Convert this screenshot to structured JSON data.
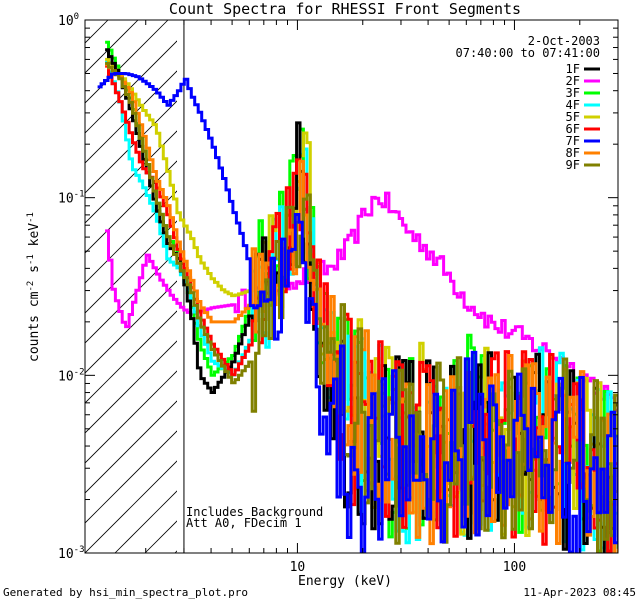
{
  "chart_data": {
    "type": "line",
    "title": "Count Spectra for RHESSI Front Segments",
    "xlabel": "Energy (keV)",
    "ylabel": {
      "main": "counts cm",
      "e1": "-2",
      "mid": " s",
      "e2": "-1",
      "end": " keV",
      "e3": "-1"
    },
    "x_scale": "log",
    "y_scale": "log",
    "xlim": [
      1.05,
      300
    ],
    "ylim": [
      0.001,
      1.0
    ],
    "x_ticks": [
      {
        "value": 10,
        "label": "10"
      },
      {
        "value": 100,
        "label": "100"
      }
    ],
    "y_ticks": [
      {
        "value": 0.001,
        "label": "10",
        "exp": "-3"
      },
      {
        "value": 0.01,
        "label": "10",
        "exp": "-2"
      },
      {
        "value": 0.1,
        "label": "10",
        "exp": "-1"
      },
      {
        "value": 1,
        "label": "10",
        "exp": "0"
      }
    ],
    "legend_placement": "top-right",
    "legend_header": [
      "2-Oct-2003",
      "07:40:00 to 07:41:00"
    ],
    "hatched_region": [
      1.05,
      3.0
    ],
    "annotation": [
      "Includes Background",
      "Att A0, FDecim 1"
    ],
    "footer_left": "Generated by hsi_min_spectra_plot.pro",
    "footer_right": "11-Apr-2023 08:45",
    "series": [
      {
        "name": "1F",
        "color": "#000000",
        "x": [
          1.3,
          1.5,
          1.7,
          1.9,
          2.2,
          2.5,
          2.8,
          3.0,
          3.2,
          3.5,
          4,
          5,
          6,
          7,
          8,
          9,
          10,
          10.5,
          11,
          12,
          14,
          17,
          20,
          25,
          30,
          35,
          40,
          50,
          60,
          70,
          80,
          100,
          120,
          150,
          180,
          200,
          230,
          260,
          300
        ],
        "y": [
          0.68,
          0.48,
          0.3,
          0.18,
          0.09,
          0.055,
          0.045,
          0.032,
          0.022,
          0.01,
          0.008,
          0.012,
          0.022,
          0.035,
          0.05,
          0.08,
          0.13,
          0.1,
          0.06,
          0.02,
          0.009,
          0.006,
          0.0045,
          0.004,
          0.0038,
          0.0037,
          0.0036,
          0.0035,
          0.0037,
          0.004,
          0.0042,
          0.0045,
          0.0042,
          0.004,
          0.0035,
          0.0033,
          0.003,
          0.0027,
          0.0024
        ]
      },
      {
        "name": "2F",
        "color": "#ff00ff",
        "x": [
          1.3,
          1.4,
          1.6,
          1.8,
          2.0,
          2.3,
          2.6,
          2.9,
          3.2,
          4,
          5,
          6,
          7,
          8,
          9,
          10,
          11,
          12,
          14,
          16,
          18,
          20,
          22,
          24,
          26,
          28,
          30,
          33,
          36,
          40,
          45,
          50,
          55,
          60,
          70,
          80,
          90,
          100,
          120,
          150,
          180,
          200,
          230,
          260,
          300
        ],
        "y": [
          0.065,
          0.03,
          0.018,
          0.03,
          0.048,
          0.035,
          0.028,
          0.024,
          0.022,
          0.024,
          0.025,
          0.028,
          0.03,
          0.032,
          0.034,
          0.036,
          0.036,
          0.038,
          0.04,
          0.048,
          0.06,
          0.08,
          0.095,
          0.1,
          0.09,
          0.08,
          0.072,
          0.062,
          0.057,
          0.05,
          0.042,
          0.035,
          0.03,
          0.026,
          0.022,
          0.019,
          0.018,
          0.017,
          0.015,
          0.013,
          0.011,
          0.01,
          0.009,
          0.008,
          0.0055
        ]
      },
      {
        "name": "3F",
        "color": "#00ff00",
        "x": [
          1.3,
          1.5,
          1.7,
          1.9,
          2.2,
          2.5,
          2.8,
          3.2,
          3.5,
          4,
          5,
          6,
          7,
          8,
          9,
          10,
          10.5,
          11,
          12,
          14,
          17,
          20,
          25,
          30,
          35,
          40,
          50,
          60,
          70,
          80,
          100,
          120,
          150,
          180,
          200,
          230,
          260,
          300
        ],
        "y": [
          0.75,
          0.5,
          0.35,
          0.2,
          0.1,
          0.06,
          0.05,
          0.025,
          0.015,
          0.01,
          0.013,
          0.025,
          0.04,
          0.06,
          0.09,
          0.15,
          0.2,
          0.08,
          0.025,
          0.012,
          0.007,
          0.005,
          0.0045,
          0.004,
          0.0042,
          0.004,
          0.0045,
          0.0048,
          0.005,
          0.0046,
          0.0044,
          0.0042,
          0.004,
          0.0038,
          0.0035,
          0.0032,
          0.003,
          0.0027
        ]
      },
      {
        "name": "4F",
        "color": "#00ffff",
        "x": [
          1.3,
          1.5,
          1.7,
          1.9,
          2.2,
          2.5,
          2.8,
          3.2,
          3.5,
          4,
          5,
          6,
          7,
          8,
          9,
          10,
          10.5,
          11,
          12,
          14,
          17,
          20,
          25,
          30,
          35,
          40,
          50,
          60,
          70,
          80,
          100,
          120,
          150,
          180,
          200,
          230,
          260,
          300
        ],
        "y": [
          0.58,
          0.35,
          0.15,
          0.12,
          0.08,
          0.045,
          0.04,
          0.028,
          0.018,
          0.012,
          0.01,
          0.016,
          0.03,
          0.045,
          0.07,
          0.11,
          0.15,
          0.09,
          0.03,
          0.013,
          0.007,
          0.005,
          0.0045,
          0.004,
          0.004,
          0.0038,
          0.0038,
          0.004,
          0.0042,
          0.0044,
          0.0045,
          0.0043,
          0.004,
          0.0036,
          0.0034,
          0.003,
          0.0028,
          0.0025
        ]
      },
      {
        "name": "5F",
        "color": "#d0d000",
        "x": [
          1.3,
          1.5,
          1.7,
          1.9,
          2.2,
          2.5,
          2.8,
          3.2,
          3.5,
          4,
          4.5,
          5,
          6,
          7,
          8,
          9,
          10,
          10.5,
          11,
          12,
          14,
          17,
          20,
          25,
          30,
          35,
          40,
          50,
          60,
          70,
          80,
          100,
          120,
          150,
          180,
          200,
          230,
          260,
          300
        ],
        "y": [
          0.6,
          0.5,
          0.4,
          0.32,
          0.25,
          0.14,
          0.08,
          0.06,
          0.045,
          0.035,
          0.03,
          0.028,
          0.03,
          0.035,
          0.045,
          0.07,
          0.12,
          0.14,
          0.1,
          0.04,
          0.015,
          0.008,
          0.006,
          0.005,
          0.0045,
          0.0045,
          0.0042,
          0.004,
          0.0042,
          0.0044,
          0.0045,
          0.0042,
          0.004,
          0.0036,
          0.0034,
          0.0031,
          0.0028,
          0.0026,
          0.0024
        ]
      },
      {
        "name": "6F",
        "color": "#ff0000",
        "x": [
          1.3,
          1.5,
          1.7,
          1.9,
          2.2,
          2.5,
          2.8,
          3.2,
          3.5,
          4,
          5,
          6,
          7,
          8,
          9,
          10,
          10.5,
          11,
          12,
          14,
          17,
          20,
          25,
          30,
          35,
          40,
          50,
          60,
          70,
          80,
          100,
          120,
          150,
          180,
          200,
          230,
          260,
          300
        ],
        "y": [
          0.55,
          0.35,
          0.22,
          0.15,
          0.12,
          0.08,
          0.05,
          0.032,
          0.022,
          0.015,
          0.01,
          0.015,
          0.025,
          0.04,
          0.06,
          0.09,
          0.11,
          0.08,
          0.03,
          0.012,
          0.007,
          0.005,
          0.0044,
          0.004,
          0.0038,
          0.0037,
          0.0036,
          0.0038,
          0.004,
          0.0042,
          0.0043,
          0.0041,
          0.0038,
          0.0035,
          0.0033,
          0.003,
          0.0028,
          0.0025
        ]
      },
      {
        "name": "7F",
        "color": "#0000ff",
        "x": [
          1.2,
          1.4,
          1.6,
          1.8,
          2.0,
          2.2,
          2.5,
          2.8,
          3.0,
          3.2,
          3.5,
          4,
          4.5,
          5,
          5.5,
          6,
          7,
          8,
          9,
          10,
          11,
          12,
          14,
          17,
          20,
          25,
          30,
          35,
          40,
          50,
          60,
          70,
          80,
          100,
          120,
          150,
          180,
          200,
          230,
          260,
          300
        ],
        "y": [
          0.42,
          0.5,
          0.5,
          0.48,
          0.44,
          0.4,
          0.33,
          0.4,
          0.47,
          0.38,
          0.3,
          0.2,
          0.13,
          0.085,
          0.06,
          0.04,
          0.03,
          0.03,
          0.035,
          0.05,
          0.03,
          0.012,
          0.006,
          0.0035,
          0.003,
          0.003,
          0.0032,
          0.0034,
          0.0036,
          0.0038,
          0.004,
          0.0042,
          0.0043,
          0.0041,
          0.0039,
          0.0036,
          0.0033,
          0.003,
          0.0028,
          0.0026,
          0.0023
        ]
      },
      {
        "name": "8F",
        "color": "#ff8000",
        "x": [
          1.3,
          1.5,
          1.7,
          1.9,
          2.2,
          2.5,
          2.8,
          3.2,
          3.5,
          4,
          5,
          6,
          7,
          8,
          9,
          10,
          10.5,
          11,
          12,
          14,
          17,
          20,
          25,
          30,
          35,
          40,
          50,
          60,
          70,
          80,
          100,
          120,
          150,
          180,
          200,
          230,
          260,
          300
        ],
        "y": [
          0.56,
          0.48,
          0.38,
          0.24,
          0.13,
          0.09,
          0.055,
          0.035,
          0.025,
          0.02,
          0.02,
          0.025,
          0.035,
          0.05,
          0.065,
          0.09,
          0.11,
          0.085,
          0.035,
          0.014,
          0.008,
          0.0055,
          0.0048,
          0.0042,
          0.004,
          0.0039,
          0.0038,
          0.004,
          0.0042,
          0.0044,
          0.0045,
          0.0043,
          0.004,
          0.0037,
          0.0034,
          0.0031,
          0.0028,
          0.0025
        ]
      },
      {
        "name": "9F",
        "color": "#808000",
        "x": [
          1.3,
          1.5,
          1.7,
          1.9,
          2.2,
          2.5,
          2.8,
          3.2,
          3.5,
          4,
          5,
          6,
          7,
          8,
          9,
          10,
          10.5,
          11,
          12,
          14,
          17,
          20,
          25,
          30,
          35,
          40,
          50,
          60,
          70,
          80,
          100,
          120,
          150,
          180,
          200,
          230,
          260,
          300
        ],
        "y": [
          0.57,
          0.47,
          0.33,
          0.2,
          0.1,
          0.06,
          0.042,
          0.03,
          0.02,
          0.014,
          0.009,
          0.012,
          0.02,
          0.03,
          0.045,
          0.07,
          0.09,
          0.07,
          0.028,
          0.012,
          0.007,
          0.005,
          0.0042,
          0.0038,
          0.0036,
          0.0035,
          0.0035,
          0.0037,
          0.004,
          0.0042,
          0.0043,
          0.0041,
          0.0038,
          0.0035,
          0.0032,
          0.003,
          0.0027,
          0.0024
        ]
      }
    ]
  }
}
